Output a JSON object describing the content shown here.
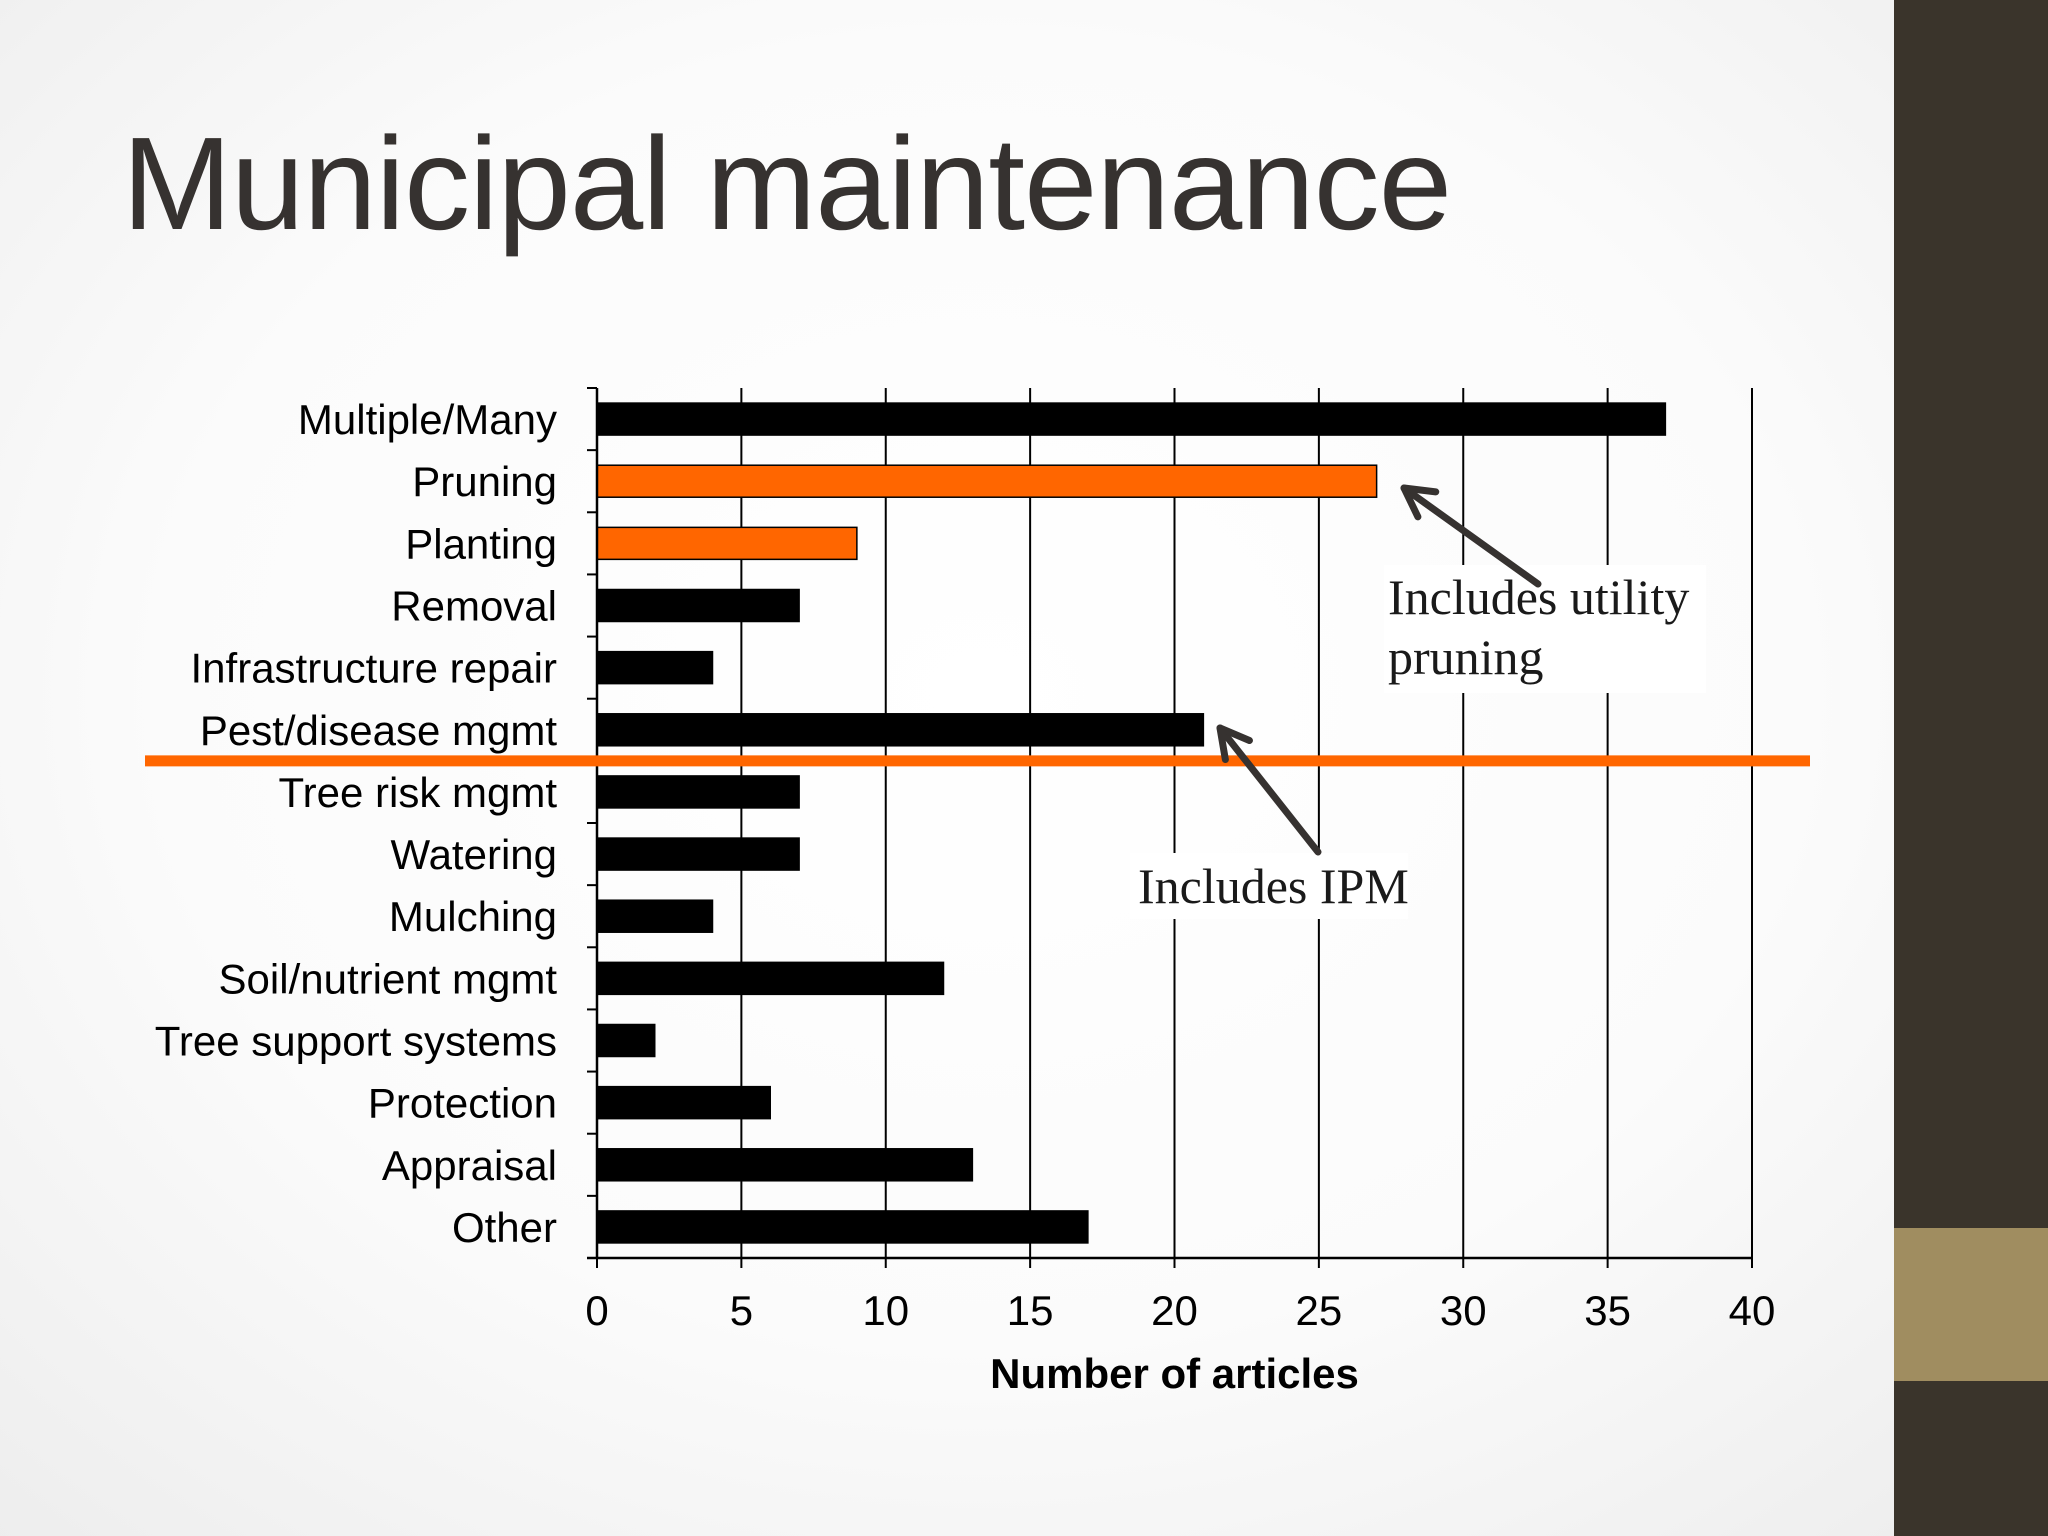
{
  "slide": {
    "title": "Municipal maintenance"
  },
  "colors": {
    "bar_default": "#000000",
    "bar_highlight": "#ff6600",
    "divider": "#ff6600",
    "arrow": "#363230",
    "sidebar_dark": "#3a342b",
    "sidebar_accent": "#a08d60"
  },
  "chart_data": {
    "type": "bar",
    "orientation": "horizontal",
    "categories": [
      "Multiple/Many",
      "Pruning",
      "Planting",
      "Removal",
      "Infrastructure repair",
      "Pest/disease mgmt",
      "Tree risk mgmt",
      "Watering",
      "Mulching",
      "Soil/nutrient mgmt",
      "Tree support systems",
      "Protection",
      "Appraisal",
      "Other"
    ],
    "values": [
      37,
      27,
      9,
      7,
      4,
      21,
      7,
      7,
      4,
      12,
      2,
      6,
      13,
      17
    ],
    "highlighted": [
      "Pruning",
      "Planting"
    ],
    "xlabel": "Number of articles",
    "ylabel": "",
    "xlim": [
      0,
      40
    ],
    "xticks": [
      0,
      5,
      10,
      15,
      20,
      25,
      30,
      35,
      40
    ],
    "grid": "vertical",
    "divider_after_category": "Pest/disease mgmt",
    "annotations": [
      {
        "lines": [
          "Includes utility",
          "pruning"
        ],
        "points_to": "Pruning"
      },
      {
        "lines": [
          "Includes IPM"
        ],
        "points_to": "Pest/disease mgmt"
      }
    ]
  }
}
